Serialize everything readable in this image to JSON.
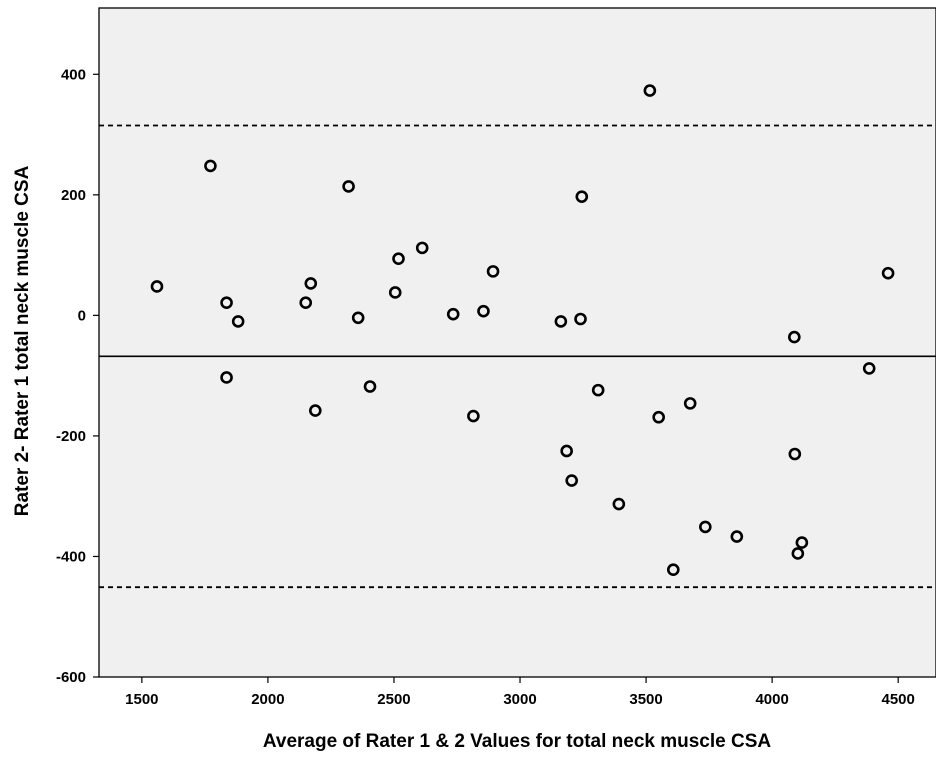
{
  "chart_data": {
    "type": "scatter",
    "title": "",
    "xlabel": "Average of Rater 1 & 2 Values for total neck muscle CSA",
    "ylabel": "Rater 2- Rater 1 total neck muscle CSA",
    "xlim": [
      1330,
      4650
    ],
    "ylim": [
      -600,
      510
    ],
    "xticks": [
      1500,
      2000,
      2500,
      3000,
      3500,
      4000,
      4500
    ],
    "yticks": [
      -600,
      -400,
      -200,
      0,
      200,
      400
    ],
    "xtick_labels": [
      "1500",
      "2000",
      "2500",
      "3000",
      "3500",
      "4000",
      "4500"
    ],
    "ytick_labels": [
      "-600",
      "-400",
      "-200",
      "0",
      "200",
      "400"
    ],
    "grid": false,
    "reference_lines": [
      {
        "kind": "mean",
        "y": -68,
        "style": "solid"
      },
      {
        "kind": "upper_limit",
        "y": 315,
        "style": "dashed"
      },
      {
        "kind": "lower_limit",
        "y": -451,
        "style": "dashed"
      }
    ],
    "points": [
      {
        "x": 1560,
        "y": 48
      },
      {
        "x": 1772,
        "y": 248
      },
      {
        "x": 1836,
        "y": 21
      },
      {
        "x": 1836,
        "y": -103
      },
      {
        "x": 1882,
        "y": -10
      },
      {
        "x": 2150,
        "y": 21
      },
      {
        "x": 2170,
        "y": 53
      },
      {
        "x": 2188,
        "y": -158
      },
      {
        "x": 2320,
        "y": 214
      },
      {
        "x": 2358,
        "y": -4
      },
      {
        "x": 2405,
        "y": -118
      },
      {
        "x": 2505,
        "y": 38
      },
      {
        "x": 2518,
        "y": 94
      },
      {
        "x": 2612,
        "y": 112
      },
      {
        "x": 2735,
        "y": 2
      },
      {
        "x": 2815,
        "y": -167
      },
      {
        "x": 2855,
        "y": 7
      },
      {
        "x": 2893,
        "y": 73
      },
      {
        "x": 3162,
        "y": -10
      },
      {
        "x": 3185,
        "y": -225
      },
      {
        "x": 3205,
        "y": -274
      },
      {
        "x": 3240,
        "y": -6
      },
      {
        "x": 3245,
        "y": 197
      },
      {
        "x": 3310,
        "y": -124
      },
      {
        "x": 3392,
        "y": -313
      },
      {
        "x": 3515,
        "y": 373
      },
      {
        "x": 3550,
        "y": -169
      },
      {
        "x": 3608,
        "y": -422
      },
      {
        "x": 3675,
        "y": -146
      },
      {
        "x": 3735,
        "y": -351
      },
      {
        "x": 3860,
        "y": -367
      },
      {
        "x": 4088,
        "y": -36
      },
      {
        "x": 4090,
        "y": -230
      },
      {
        "x": 4102,
        "y": -395
      },
      {
        "x": 4118,
        "y": -377
      },
      {
        "x": 4385,
        "y": -88
      },
      {
        "x": 4460,
        "y": 70
      }
    ],
    "colors": {
      "plot_background": "#f0f0f0",
      "page_background": "#ffffff",
      "axis": "#000000",
      "marker_edge": "#000000"
    }
  }
}
